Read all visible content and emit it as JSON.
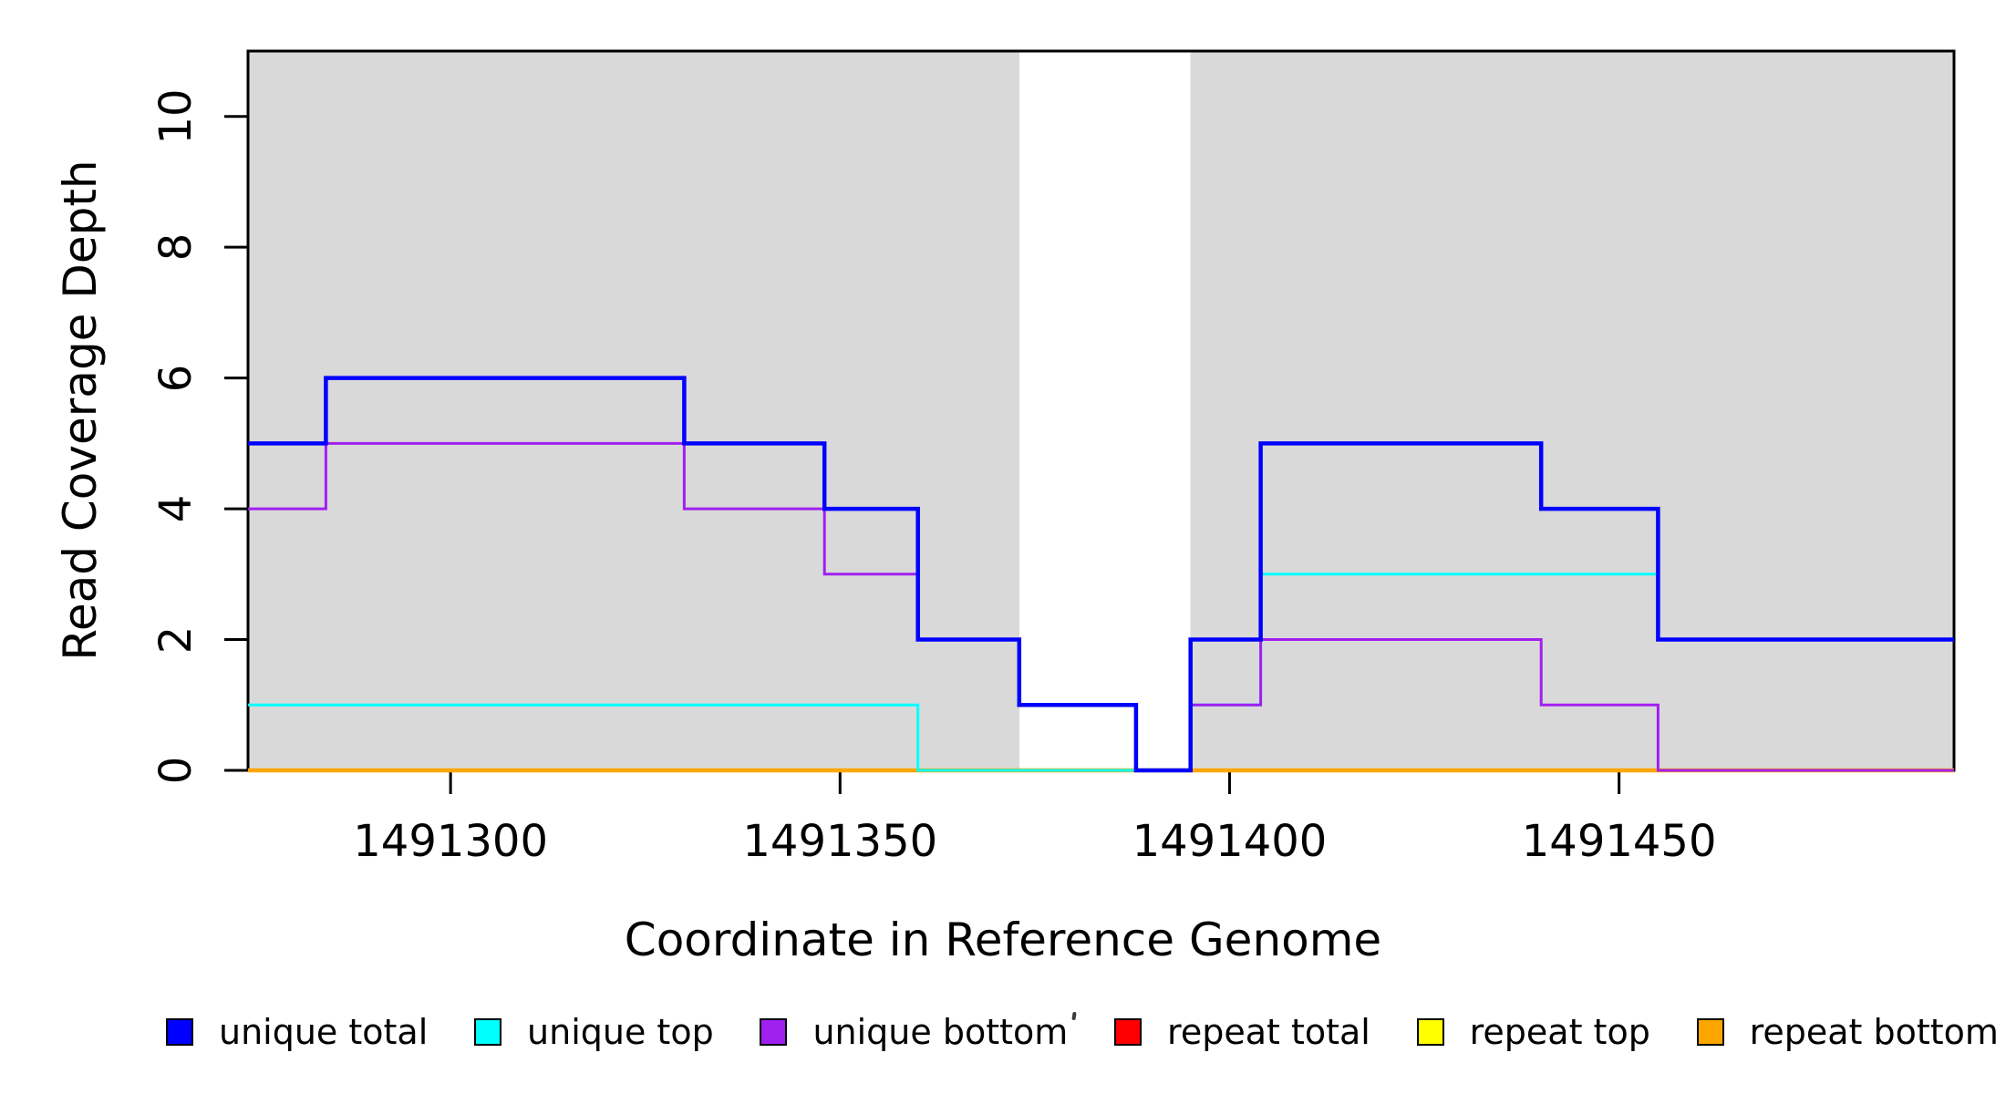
{
  "chart_data": {
    "type": "line",
    "subtype": "step-after",
    "title": "",
    "xlabel": "Coordinate in Reference Genome",
    "ylabel": "Read Coverage Depth",
    "xlim": [
      1491274,
      1491493
    ],
    "ylim": [
      0,
      11.0
    ],
    "x_ticks": [
      1491300,
      1491350,
      1491400,
      1491450
    ],
    "y_ticks": [
      0,
      2,
      4,
      6,
      8,
      10
    ],
    "grid": false,
    "plot_background": "#ffffff",
    "shaded_region_color": "#D9D9D9",
    "background_regions": [
      {
        "name": "left-shaded-region",
        "x0": 1491274,
        "x1": 1491373
      },
      {
        "name": "right-shaded-region",
        "x0": 1491395,
        "x1": 1491493
      }
    ],
    "series": [
      {
        "name": "repeat total",
        "color": "#FF0000",
        "width": 3,
        "points": [
          [
            1491274,
            0
          ],
          [
            1491493,
            0
          ]
        ]
      },
      {
        "name": "repeat top",
        "color": "#FFFF00",
        "width": 3,
        "points": [
          [
            1491274,
            0
          ],
          [
            1491493,
            0
          ]
        ]
      },
      {
        "name": "repeat bottom",
        "color": "#FFA500",
        "width": 4.5,
        "points": [
          [
            1491274,
            0
          ],
          [
            1491493,
            0
          ]
        ]
      },
      {
        "name": "unique top",
        "color": "#00FFFF",
        "width": 3,
        "points": [
          [
            1491274,
            1
          ],
          [
            1491360,
            0
          ],
          [
            1491395,
            1
          ],
          [
            1491404,
            3
          ],
          [
            1491455,
            2
          ],
          [
            1491493,
            2
          ]
        ]
      },
      {
        "name": "unique bottom",
        "color": "#A020F0",
        "width": 3,
        "points": [
          [
            1491274,
            4
          ],
          [
            1491284,
            5
          ],
          [
            1491330,
            4
          ],
          [
            1491348,
            3
          ],
          [
            1491360,
            2
          ],
          [
            1491373,
            1
          ],
          [
            1491388,
            0
          ],
          [
            1491395,
            1
          ],
          [
            1491404,
            2
          ],
          [
            1491440,
            1
          ],
          [
            1491455,
            0
          ],
          [
            1491493,
            0
          ]
        ]
      },
      {
        "name": "unique total",
        "color": "#0000FF",
        "width": 4.5,
        "points": [
          [
            1491274,
            5
          ],
          [
            1491284,
            6
          ],
          [
            1491330,
            5
          ],
          [
            1491348,
            4
          ],
          [
            1491360,
            2
          ],
          [
            1491373,
            1
          ],
          [
            1491388,
            0
          ],
          [
            1491395,
            2
          ],
          [
            1491404,
            5
          ],
          [
            1491440,
            4
          ],
          [
            1491455,
            2
          ],
          [
            1491493,
            2
          ]
        ]
      }
    ],
    "legend": {
      "position": "bottom",
      "items": [
        {
          "label": "unique total",
          "color": "#0000FF"
        },
        {
          "label": "unique top",
          "color": "#00FFFF"
        },
        {
          "label": "unique bottom",
          "color": "#A020F0"
        },
        {
          "label": "repeat total",
          "color": "#FF0000"
        },
        {
          "label": "repeat top",
          "color": "#FFFF00"
        },
        {
          "label": "repeat bottom",
          "color": "#FFA500"
        }
      ]
    },
    "axis_color": "#000000",
    "text_color": "#000000"
  }
}
